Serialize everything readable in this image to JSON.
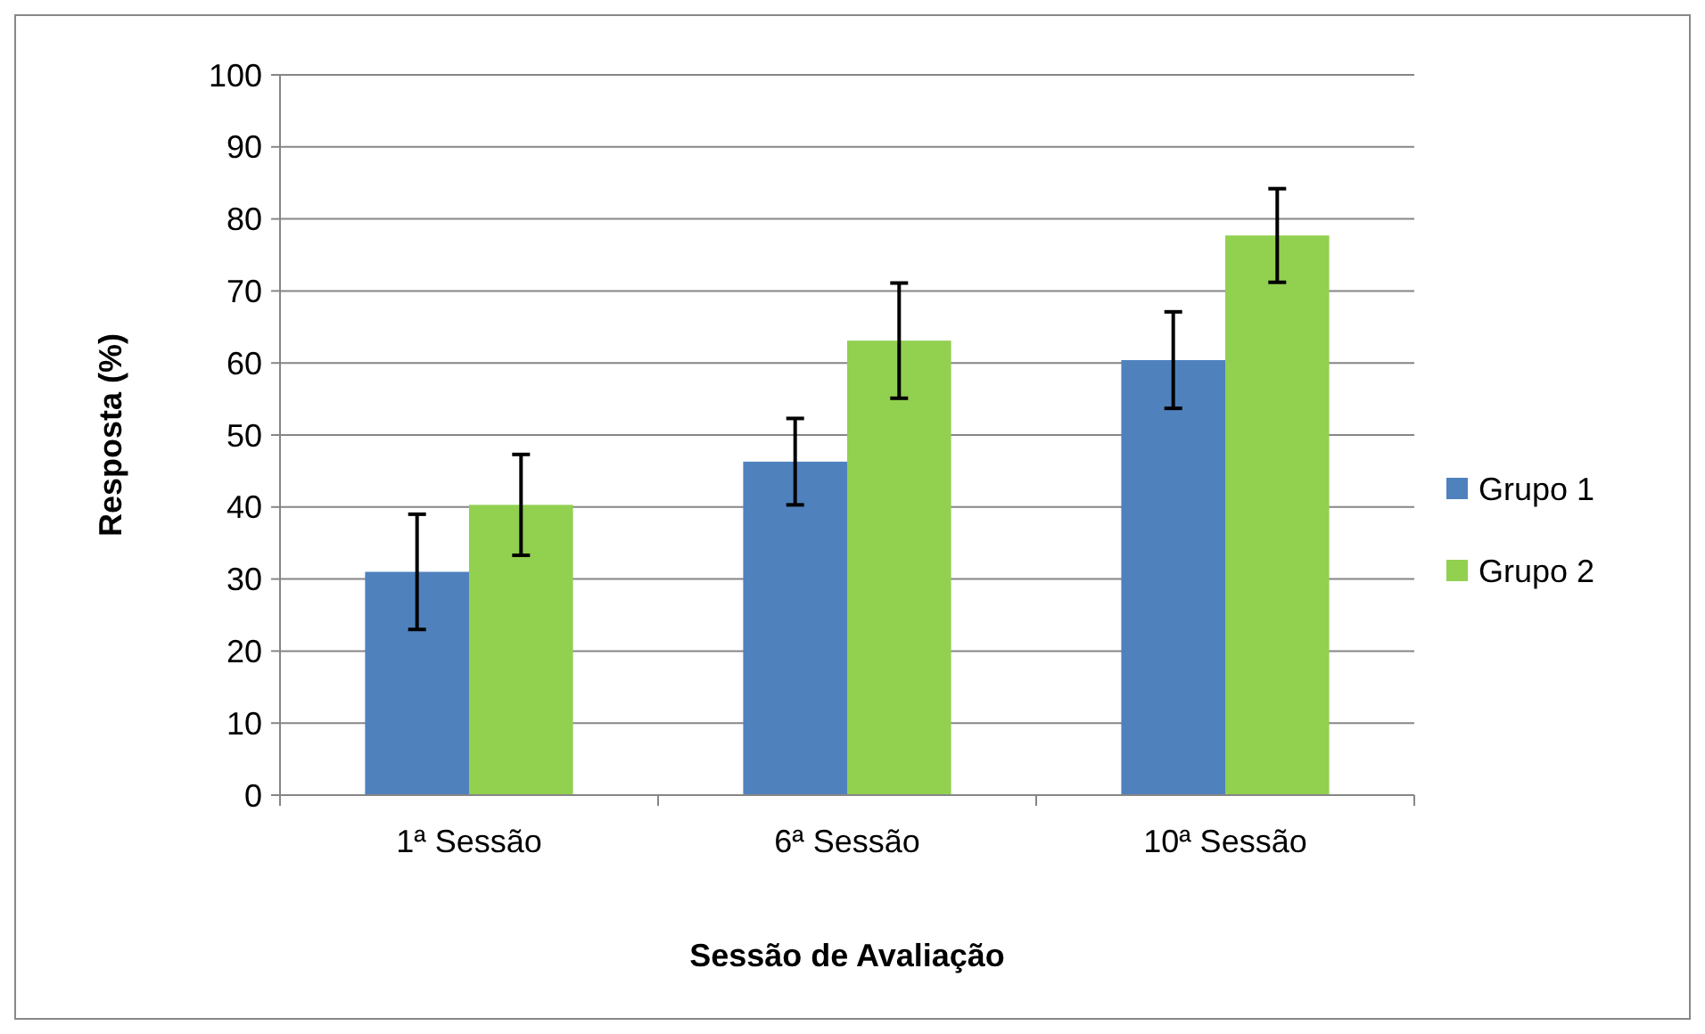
{
  "chart_data": {
    "type": "bar",
    "xlabel": "Sessão de Avaliação",
    "ylabel": "Resposta (%)",
    "categories": [
      "1ª Sessão",
      "6ª Sessão",
      "10ª Sessão"
    ],
    "series": [
      {
        "name": "Grupo 1",
        "color": "#4f81bd",
        "values": [
          31,
          46.3,
          60.4
        ],
        "errors": [
          8,
          6,
          6.7
        ]
      },
      {
        "name": "Grupo 2",
        "color": "#92d050",
        "values": [
          40.3,
          63.1,
          77.7
        ],
        "errors": [
          7,
          8,
          6.5
        ]
      }
    ],
    "ylim": [
      0,
      100
    ],
    "yticks": [
      0,
      10,
      20,
      30,
      40,
      50,
      60,
      70,
      80,
      90,
      100
    ],
    "grid": "y",
    "legend": "right"
  }
}
